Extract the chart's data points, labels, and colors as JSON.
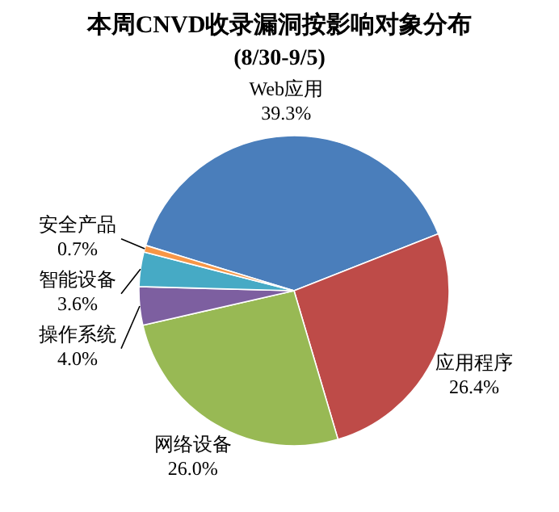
{
  "chart_data": {
    "type": "pie",
    "title": "本周CNVD收录漏洞按影响对象分布",
    "subtitle": "(8/30-9/5)",
    "categories": [
      "Web应用",
      "应用程序",
      "网络设备",
      "操作系统",
      "智能设备",
      "安全产品"
    ],
    "values": [
      39.3,
      26.4,
      26.0,
      4.0,
      3.6,
      0.7
    ],
    "colors": [
      "#4a7ebb",
      "#be4b48",
      "#98b954",
      "#7d5fa0",
      "#46aac5",
      "#f79646"
    ],
    "value_labels": [
      "39.3%",
      "26.4%",
      "26.0%",
      "4.0%",
      "3.6%",
      "0.7%"
    ]
  }
}
